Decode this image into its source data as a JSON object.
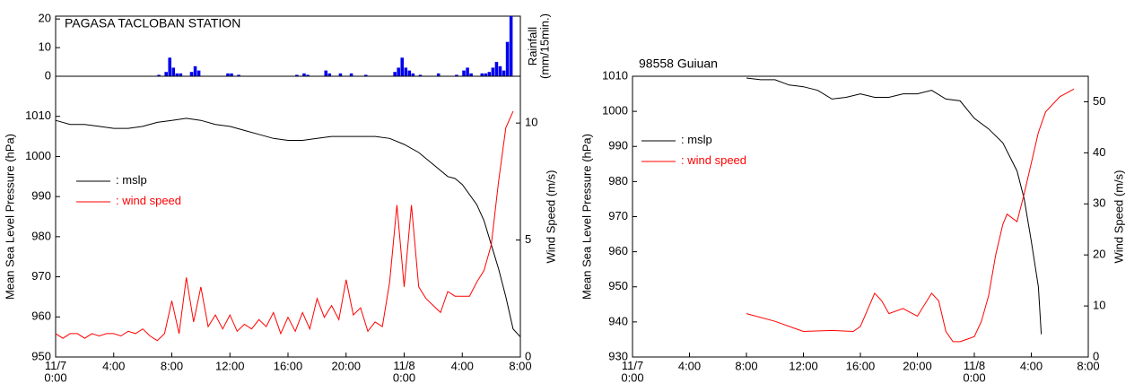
{
  "chart_data": [
    {
      "type": "bar",
      "title": "PAGASA TACLOBAN STATION",
      "ylabel": "Rainfall\n(mm/15min.)",
      "ylabel_side": "right",
      "xlim": [
        0,
        32
      ],
      "ylim": [
        0,
        21
      ],
      "yticks": [
        0,
        10,
        20
      ],
      "color": "#0000ee",
      "x": [
        7.0,
        7.5,
        7.75,
        8.0,
        8.25,
        8.5,
        9.25,
        9.5,
        9.75,
        11.75,
        12.0,
        12.5,
        16.5,
        17.0,
        17.25,
        18.5,
        18.75,
        19.5,
        20.25,
        21.25,
        23.25,
        23.5,
        23.75,
        24.0,
        24.25,
        24.5,
        25.0,
        26.25,
        27.5,
        28.0,
        28.25,
        28.5,
        29.25,
        29.5,
        29.75,
        30.0,
        30.25,
        30.5,
        30.75,
        31.0,
        31.25
      ],
      "values": [
        0.5,
        1.5,
        6.5,
        3,
        1,
        1,
        1.5,
        3.5,
        2,
        1,
        1,
        0.5,
        0.5,
        1,
        0.5,
        2,
        1,
        1,
        1,
        0.5,
        1.5,
        3,
        6.5,
        3,
        2,
        1,
        0.5,
        1,
        0.5,
        2,
        3,
        1,
        1,
        1,
        1.5,
        3,
        5,
        3.5,
        2,
        12,
        21
      ]
    },
    {
      "type": "line",
      "ylabel": "Mean Sea Level Pressure (hPa)",
      "y2label": "Wind Speed (m/s)",
      "legend_separator": ":",
      "xlim": [
        0,
        32
      ],
      "ylim": [
        950,
        1020
      ],
      "y2lim": [
        0,
        12
      ],
      "xticks": [
        {
          "value": 0,
          "label": "11/7\n0:00"
        },
        {
          "value": 4,
          "label": "4:00"
        },
        {
          "value": 8,
          "label": "8:00"
        },
        {
          "value": 12,
          "label": "12:00"
        },
        {
          "value": 16,
          "label": "16:00"
        },
        {
          "value": 20,
          "label": "20:00"
        },
        {
          "value": 24,
          "label": "11/8\n0:00"
        },
        {
          "value": 28,
          "label": "4:00"
        },
        {
          "value": 32,
          "label": "8:00"
        }
      ],
      "yticks": [
        950,
        960,
        970,
        980,
        990,
        1000,
        1010
      ],
      "y2ticks": [
        0,
        5,
        10
      ],
      "series": [
        {
          "name": "mslp",
          "color": "#000000",
          "axis": "y",
          "x": [
            0,
            1,
            2,
            3,
            4,
            5,
            6,
            7,
            8,
            9,
            10,
            11,
            12,
            13,
            14,
            15,
            16,
            17,
            18,
            19,
            20,
            21,
            22,
            23,
            24,
            25,
            26,
            27,
            27.5,
            28,
            29,
            29.5,
            30,
            30.5,
            31,
            31.5,
            32
          ],
          "values": [
            1009,
            1008,
            1008,
            1007.5,
            1007,
            1007,
            1007.5,
            1008.5,
            1009,
            1009.5,
            1009,
            1008,
            1007.5,
            1006.5,
            1005.5,
            1004.5,
            1004,
            1004,
            1004.5,
            1005,
            1005,
            1005,
            1005,
            1004.5,
            1003,
            1001,
            998,
            995,
            994.5,
            993,
            988,
            984,
            978,
            972,
            965,
            957,
            955
          ]
        },
        {
          "name": "wind speed",
          "color": "#ff0000",
          "axis": "y2",
          "x": [
            0,
            0.5,
            1,
            1.5,
            2,
            2.5,
            3,
            3.5,
            4,
            4.5,
            5,
            5.5,
            6,
            6.5,
            7,
            7.5,
            8,
            8.5,
            9,
            9.5,
            10,
            10.5,
            11,
            11.5,
            12,
            12.5,
            13,
            13.5,
            14,
            14.5,
            15,
            15.5,
            16,
            16.5,
            17,
            17.5,
            18,
            18.5,
            19,
            19.5,
            20,
            20.5,
            21,
            21.5,
            22,
            22.5,
            23,
            23.5,
            24,
            24.5,
            25,
            25.5,
            26,
            26.5,
            27,
            27.5,
            28,
            28.5,
            29,
            29.5,
            30,
            30.5,
            31,
            31.5
          ],
          "values": [
            1.0,
            0.8,
            1.0,
            1.0,
            0.8,
            1.0,
            0.9,
            1.0,
            1.0,
            0.9,
            1.1,
            1.0,
            1.2,
            0.9,
            0.7,
            1.0,
            2.4,
            1.0,
            3.4,
            1.5,
            3.0,
            1.3,
            1.8,
            1.2,
            1.8,
            1.1,
            1.4,
            1.2,
            1.6,
            1.3,
            1.9,
            1.0,
            1.7,
            1.1,
            1.9,
            1.2,
            2.5,
            1.7,
            2.2,
            1.6,
            3.3,
            1.8,
            2.1,
            1.1,
            1.5,
            1.3,
            3.2,
            6.5,
            3.0,
            6.5,
            3.0,
            2.5,
            2.2,
            1.9,
            2.8,
            2.6,
            2.6,
            2.6,
            3.2,
            3.7,
            4.8,
            7.5,
            9.8,
            10.5
          ]
        }
      ]
    },
    {
      "type": "line",
      "title": "98558 Guiuan",
      "ylabel": "Mean Sea Level Pressure (hPa)",
      "y2label": "Wind Speed (m/s)",
      "legend_separator": ":",
      "xlim": [
        0,
        32
      ],
      "ylim": [
        930,
        1010
      ],
      "y2lim": [
        0,
        55
      ],
      "xticks": [
        {
          "value": 0,
          "label": "11/7\n0:00"
        },
        {
          "value": 4,
          "label": "4:00"
        },
        {
          "value": 8,
          "label": "8:00"
        },
        {
          "value": 12,
          "label": "12:00"
        },
        {
          "value": 16,
          "label": "16:00"
        },
        {
          "value": 20,
          "label": "20:00"
        },
        {
          "value": 24,
          "label": "11/8\n0:00"
        },
        {
          "value": 28,
          "label": "4:00"
        },
        {
          "value": 32,
          "label": "8:00"
        }
      ],
      "yticks": [
        930,
        940,
        950,
        960,
        970,
        980,
        990,
        1000,
        1010
      ],
      "y2ticks": [
        0,
        10,
        20,
        30,
        40,
        50
      ],
      "series": [
        {
          "name": "mslp",
          "color": "#000000",
          "axis": "y",
          "x": [
            8,
            9,
            10,
            11,
            12,
            13,
            14,
            15,
            16,
            17,
            18,
            19,
            20,
            21,
            22,
            23,
            24,
            25,
            26,
            27,
            27.5,
            28,
            28.5,
            28.7
          ],
          "values": [
            1009.5,
            1009,
            1009,
            1007.5,
            1007,
            1006,
            1003.5,
            1004,
            1005,
            1004,
            1004,
            1005,
            1005,
            1006,
            1003.5,
            1003,
            998,
            995,
            991,
            983,
            975,
            963,
            950,
            936.5
          ]
        },
        {
          "name": "wind speed",
          "color": "#ff0000",
          "axis": "y2",
          "x": [
            8,
            10,
            12,
            14,
            15.5,
            16,
            17,
            17.5,
            18,
            19,
            20,
            21,
            21.5,
            22,
            22.5,
            23,
            23.5,
            24,
            24.5,
            25,
            25.5,
            26,
            26.3,
            27,
            27.5,
            28,
            28.5,
            29,
            30,
            31
          ],
          "values": [
            8.5,
            7,
            5,
            5.2,
            5,
            6,
            12.5,
            11,
            8.5,
            9.5,
            8,
            12.5,
            11,
            5,
            3,
            3,
            3.5,
            4,
            7,
            12,
            20,
            26,
            28,
            26.5,
            32,
            38,
            44,
            48,
            51,
            52.5
          ]
        }
      ]
    }
  ]
}
